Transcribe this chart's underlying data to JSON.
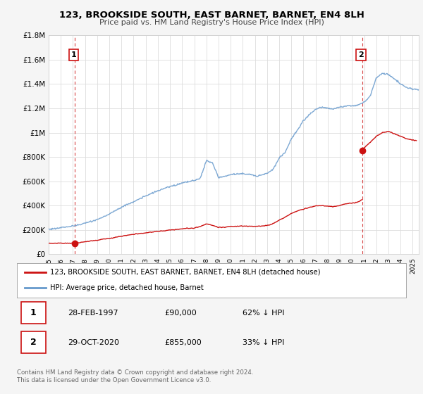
{
  "title": "123, BROOKSIDE SOUTH, EAST BARNET, BARNET, EN4 8LH",
  "subtitle": "Price paid vs. HM Land Registry's House Price Index (HPI)",
  "ylim": [
    0,
    1800000
  ],
  "yticks": [
    0,
    200000,
    400000,
    600000,
    800000,
    1000000,
    1200000,
    1400000,
    1600000,
    1800000
  ],
  "ytick_labels": [
    "£0",
    "£200K",
    "£400K",
    "£600K",
    "£800K",
    "£1M",
    "£1.2M",
    "£1.4M",
    "£1.6M",
    "£1.8M"
  ],
  "xlim_start": 1995.0,
  "xlim_end": 2025.5,
  "bg_color": "#ffffff",
  "grid_color": "#dddddd",
  "line1_color": "#cc1111",
  "line2_color": "#6699cc",
  "marker1_x": 1997.16,
  "marker1_y": 90000,
  "marker2_x": 2020.83,
  "marker2_y": 855000,
  "legend1_label": "123, BROOKSIDE SOUTH, EAST BARNET, BARNET, EN4 8LH (detached house)",
  "legend2_label": "HPI: Average price, detached house, Barnet",
  "annotation1_label": "1",
  "annotation2_label": "2",
  "table_row1": [
    "1",
    "28-FEB-1997",
    "£90,000",
    "62% ↓ HPI"
  ],
  "table_row2": [
    "2",
    "29-OCT-2020",
    "£855,000",
    "33% ↓ HPI"
  ],
  "footer": "Contains HM Land Registry data © Crown copyright and database right 2024.\nThis data is licensed under the Open Government Licence v3.0.",
  "xticks": [
    1995,
    1996,
    1997,
    1998,
    1999,
    2000,
    2001,
    2002,
    2003,
    2004,
    2005,
    2006,
    2007,
    2008,
    2009,
    2010,
    2011,
    2012,
    2013,
    2014,
    2015,
    2016,
    2017,
    2018,
    2019,
    2020,
    2021,
    2022,
    2023,
    2024,
    2025
  ]
}
